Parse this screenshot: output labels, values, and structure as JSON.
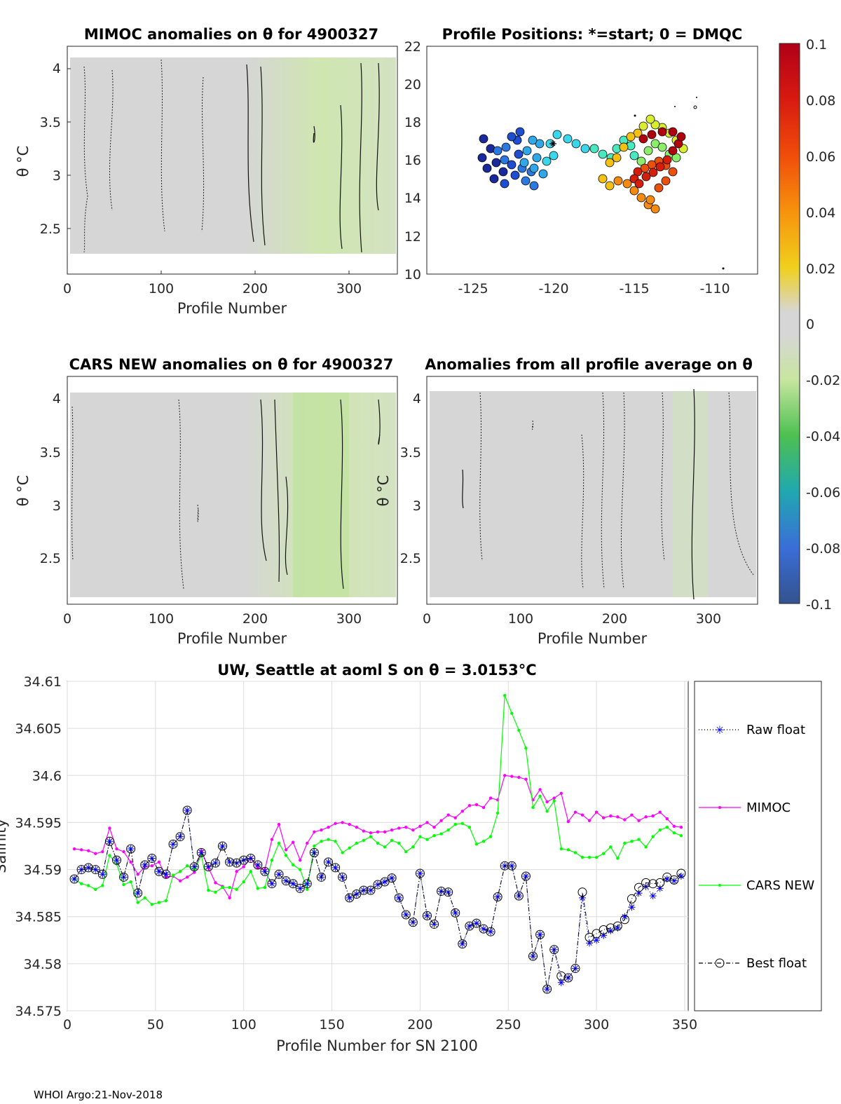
{
  "footer": "WHOI Argo:21-Nov-2018",
  "panels": {
    "mimoc": {
      "title": "MIMOC anomalies on θ  for 4900327",
      "xlabel": "Profile Number",
      "ylabel": "θ °C",
      "xticks": [
        "0",
        "100",
        "200",
        "300"
      ],
      "yticks": [
        "2.5",
        "3",
        "3.5",
        "4"
      ]
    },
    "positions": {
      "title": "Profile Positions: *=start; 0 = DMQC",
      "xticks": [
        "-125",
        "-120",
        "-115",
        "-110"
      ],
      "yticks": [
        "10",
        "12",
        "14",
        "16",
        "18",
        "20",
        "22"
      ]
    },
    "cars": {
      "title": "CARS NEW anomalies on θ for 4900327",
      "xlabel": "Profile Number",
      "ylabel": "θ °C",
      "xticks": [
        "0",
        "100",
        "200",
        "300"
      ],
      "yticks": [
        "2.5",
        "3",
        "3.5",
        "4"
      ]
    },
    "allavg": {
      "title": "Anomalies from all profile average on θ",
      "xlabel": "Profile Number",
      "ylabel": "θ °C",
      "xticks": [
        "0",
        "100",
        "200",
        "300"
      ],
      "yticks": [
        "2.5",
        "3",
        "3.5",
        "4"
      ]
    }
  },
  "colorbar": {
    "ticks": [
      "0.1",
      "0.08",
      "0.06",
      "0.04",
      "0.02",
      "0",
      "-0.02",
      "-0.04",
      "-0.06",
      "-0.08",
      "-0.1"
    ],
    "colors": [
      "#b00018",
      "#d81a10",
      "#f04d0a",
      "#f7920c",
      "#f0d01c",
      "#d6d6d6",
      "#c8e6a0",
      "#4dc050",
      "#20a8b0",
      "#3a6ed8",
      "#34528e"
    ]
  },
  "chart_data": [
    {
      "type": "line",
      "title": "UW, Seattle at aoml S on θ = 3.0153°C",
      "xlabel": "Profile Number for SN 2100",
      "ylabel": "Salinity",
      "xlim": [
        0,
        352
      ],
      "ylim": [
        34.575,
        34.61
      ],
      "xticks": [
        "0",
        "50",
        "100",
        "150",
        "200",
        "250",
        "300",
        "350"
      ],
      "yticks": [
        "34.575",
        "34.58",
        "34.585",
        "34.59",
        "34.595",
        "34.6",
        "34.605",
        "34.61"
      ],
      "series": [
        {
          "name": "Raw float",
          "color": "#0000ff",
          "x": [
            4,
            8,
            12,
            16,
            20,
            24,
            28,
            32,
            36,
            40,
            44,
            48,
            52,
            56,
            60,
            64,
            68,
            72,
            76,
            80,
            84,
            88,
            92,
            96,
            100,
            104,
            108,
            112,
            116,
            120,
            124,
            128,
            132,
            136,
            140,
            144,
            148,
            152,
            156,
            160,
            164,
            168,
            172,
            176,
            180,
            184,
            188,
            192,
            196,
            200,
            204,
            208,
            212,
            216,
            220,
            224,
            228,
            232,
            236,
            240,
            244,
            248,
            252,
            256,
            260,
            264,
            268,
            272,
            276,
            280,
            284,
            288,
            292,
            296,
            300,
            304,
            308,
            312,
            316,
            320,
            324,
            328,
            332,
            336,
            340,
            344,
            348
          ],
          "values": [
            34.589,
            34.59,
            34.5902,
            34.59,
            34.5895,
            34.593,
            34.591,
            34.5892,
            34.5922,
            34.5875,
            34.5905,
            34.5912,
            34.5898,
            34.5895,
            34.5927,
            34.5935,
            34.5963,
            34.5903,
            34.5918,
            34.5903,
            34.5907,
            34.5925,
            34.5908,
            34.5907,
            34.591,
            34.5912,
            34.5905,
            34.5898,
            34.5885,
            34.5895,
            34.5888,
            34.5885,
            34.588,
            34.5885,
            34.5918,
            34.5892,
            34.5908,
            34.5902,
            34.5892,
            34.587,
            34.5874,
            34.5878,
            34.5878,
            34.5884,
            34.5887,
            34.5891,
            34.587,
            34.5852,
            34.5844,
            34.5896,
            34.5851,
            34.5842,
            34.5877,
            34.5876,
            34.5854,
            34.5821,
            34.584,
            34.5843,
            34.5837,
            34.5834,
            34.5871,
            34.5904,
            34.5904,
            34.5872,
            34.5893,
            34.5808,
            34.5831,
            34.5773,
            34.5815,
            34.578,
            34.5785,
            34.5795,
            34.587,
            34.5822,
            34.5825,
            34.583,
            34.5835,
            34.5838,
            34.585,
            34.586,
            34.5875,
            34.5882,
            34.5872,
            34.588,
            34.589,
            34.5888,
            34.5893
          ]
        },
        {
          "name": "MIMOC",
          "color": "#ff00ff",
          "x": [
            4,
            8,
            12,
            16,
            20,
            24,
            28,
            32,
            36,
            40,
            44,
            48,
            52,
            56,
            60,
            64,
            68,
            72,
            76,
            80,
            84,
            88,
            92,
            96,
            100,
            104,
            108,
            112,
            116,
            120,
            124,
            128,
            132,
            136,
            140,
            144,
            148,
            152,
            156,
            160,
            164,
            168,
            172,
            176,
            180,
            184,
            188,
            192,
            196,
            200,
            204,
            208,
            212,
            216,
            220,
            224,
            228,
            232,
            236,
            240,
            244,
            248,
            252,
            256,
            260,
            264,
            268,
            272,
            276,
            280,
            284,
            288,
            292,
            296,
            300,
            304,
            308,
            312,
            316,
            320,
            324,
            328,
            332,
            336,
            340,
            344,
            348
          ],
          "values": [
            34.5922,
            34.5921,
            34.592,
            34.5917,
            34.5919,
            34.5944,
            34.5922,
            34.5919,
            34.5908,
            34.5895,
            34.5903,
            34.5904,
            34.5908,
            34.5892,
            34.5893,
            34.5888,
            34.5892,
            34.5897,
            34.592,
            34.5902,
            34.5886,
            34.5882,
            34.587,
            34.5898,
            34.5903,
            34.5912,
            34.5902,
            34.59,
            34.5932,
            34.5948,
            34.5921,
            34.5929,
            34.591,
            34.5928,
            34.594,
            34.5942,
            34.5945,
            34.5949,
            34.595,
            34.5948,
            34.5945,
            34.5941,
            34.5939,
            34.594,
            34.594,
            34.5942,
            34.5944,
            34.5945,
            34.5942,
            34.5946,
            34.595,
            34.5945,
            34.5952,
            34.5958,
            34.5955,
            34.5962,
            34.5968,
            34.5969,
            34.5966,
            34.5976,
            34.5974,
            34.6,
            34.5999,
            34.5998,
            34.5996,
            34.5974,
            34.5985,
            34.5972,
            34.5976,
            34.5981,
            34.5951,
            34.5961,
            34.5958,
            34.5952,
            34.5961,
            34.5955,
            34.5957,
            34.5956,
            34.5953,
            34.5958,
            34.5952,
            34.5956,
            34.5957,
            34.5961,
            34.5954,
            34.5946,
            34.5945
          ]
        },
        {
          "name": "CARS NEW",
          "color": "#00ff00",
          "x": [
            4,
            8,
            12,
            16,
            20,
            24,
            28,
            32,
            36,
            40,
            44,
            48,
            52,
            56,
            60,
            64,
            68,
            72,
            76,
            80,
            84,
            88,
            92,
            96,
            100,
            104,
            108,
            112,
            116,
            120,
            124,
            128,
            132,
            136,
            140,
            144,
            148,
            152,
            156,
            160,
            164,
            168,
            172,
            176,
            180,
            184,
            188,
            192,
            196,
            200,
            204,
            208,
            212,
            216,
            220,
            224,
            228,
            232,
            236,
            240,
            244,
            248,
            252,
            256,
            260,
            264,
            268,
            272,
            276,
            280,
            284,
            288,
            292,
            296,
            300,
            304,
            308,
            312,
            316,
            320,
            324,
            328,
            332,
            336,
            340,
            344,
            348
          ],
          "values": [
            34.589,
            34.5885,
            34.5883,
            34.5879,
            34.5883,
            34.5915,
            34.5906,
            34.5884,
            34.5887,
            34.5865,
            34.587,
            34.5863,
            34.5865,
            34.5867,
            34.5894,
            34.5898,
            34.5904,
            34.59,
            34.5915,
            34.5878,
            34.5876,
            34.5881,
            34.5881,
            34.5879,
            34.5887,
            34.5898,
            34.588,
            34.5881,
            34.591,
            34.5928,
            34.5915,
            34.5905,
            34.59,
            34.5879,
            34.5925,
            34.593,
            34.5932,
            34.593,
            34.5918,
            34.5923,
            34.5928,
            34.5931,
            34.5935,
            34.5928,
            34.5924,
            34.5931,
            34.5928,
            34.5919,
            34.5924,
            34.5935,
            34.5932,
            34.5936,
            34.5938,
            34.5942,
            34.5948,
            34.5949,
            34.5945,
            34.5927,
            34.593,
            34.5935,
            34.596,
            34.6085,
            34.6066,
            34.6048,
            34.6029,
            34.5966,
            34.5978,
            34.5962,
            34.5973,
            34.5922,
            34.5921,
            34.5918,
            34.5913,
            34.5913,
            34.5913,
            34.5917,
            34.5924,
            34.5912,
            34.5928,
            34.593,
            34.5932,
            34.5924,
            34.5935,
            34.5942,
            34.5945,
            34.5939,
            34.5936
          ]
        },
        {
          "name": "Best float",
          "color": "#000000",
          "x": [
            4,
            8,
            12,
            16,
            20,
            24,
            28,
            32,
            36,
            40,
            44,
            48,
            52,
            56,
            60,
            64,
            68,
            72,
            76,
            80,
            84,
            88,
            92,
            96,
            100,
            104,
            108,
            112,
            116,
            120,
            124,
            128,
            132,
            136,
            140,
            144,
            148,
            152,
            156,
            160,
            164,
            168,
            172,
            176,
            180,
            184,
            188,
            192,
            196,
            200,
            204,
            208,
            212,
            216,
            220,
            224,
            228,
            232,
            236,
            240,
            244,
            248,
            252,
            256,
            260,
            264,
            268,
            272,
            276,
            280,
            284,
            288,
            292,
            296,
            300,
            304,
            308,
            312,
            316,
            320,
            324,
            328,
            332,
            336,
            340,
            344,
            348
          ],
          "values": [
            34.589,
            34.59,
            34.5902,
            34.59,
            34.5895,
            34.593,
            34.591,
            34.5892,
            34.5922,
            34.5875,
            34.5905,
            34.5912,
            34.5898,
            34.5895,
            34.5927,
            34.5935,
            34.5963,
            34.5903,
            34.5918,
            34.5903,
            34.5907,
            34.5925,
            34.5908,
            34.5907,
            34.591,
            34.5912,
            34.5905,
            34.5898,
            34.5885,
            34.5895,
            34.5888,
            34.5885,
            34.588,
            34.5885,
            34.5918,
            34.5892,
            34.5908,
            34.5902,
            34.5892,
            34.587,
            34.5874,
            34.5878,
            34.5878,
            34.5884,
            34.5887,
            34.5891,
            34.587,
            34.5852,
            34.5844,
            34.5896,
            34.5851,
            34.5842,
            34.5877,
            34.5876,
            34.5854,
            34.5821,
            34.584,
            34.5843,
            34.5837,
            34.5834,
            34.5871,
            34.5904,
            34.5904,
            34.5872,
            34.5893,
            34.5808,
            34.5831,
            34.5773,
            34.5815,
            34.5787,
            34.5785,
            34.5795,
            34.5876,
            34.5828,
            34.5832,
            34.5836,
            34.5838,
            34.584,
            34.5847,
            34.5869,
            34.5881,
            34.5886,
            34.5885,
            34.5886,
            34.5892,
            34.5889,
            34.5896
          ]
        }
      ]
    }
  ]
}
